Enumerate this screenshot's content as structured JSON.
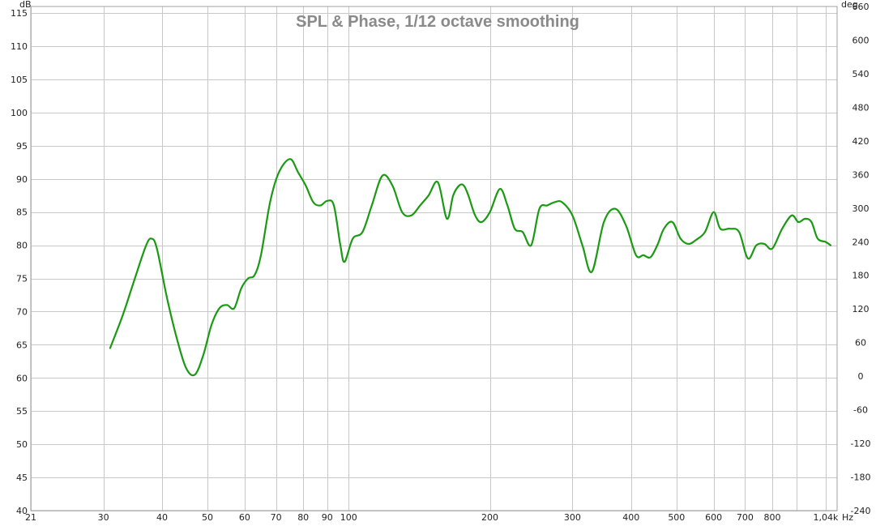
{
  "chart_data": {
    "type": "line",
    "title": "SPL & Phase, 1/12 octave smoothing",
    "xlabel": "Hz",
    "ylabel": "dB",
    "y2label": "deg",
    "x_scale": "log",
    "xlim": [
      21,
      1100
    ],
    "ylim": [
      40,
      116
    ],
    "y2lim": [
      -240,
      660
    ],
    "x_ticks": [
      {
        "value": 21,
        "label": "21"
      },
      {
        "value": 30,
        "label": "30"
      },
      {
        "value": 40,
        "label": "40"
      },
      {
        "value": 50,
        "label": "50"
      },
      {
        "value": 60,
        "label": "60"
      },
      {
        "value": 70,
        "label": "70"
      },
      {
        "value": 80,
        "label": "80"
      },
      {
        "value": 90,
        "label": "90"
      },
      {
        "value": 100,
        "label": "100"
      },
      {
        "value": 200,
        "label": "200"
      },
      {
        "value": 300,
        "label": "300"
      },
      {
        "value": 400,
        "label": "400"
      },
      {
        "value": 500,
        "label": "500"
      },
      {
        "value": 600,
        "label": "600"
      },
      {
        "value": 700,
        "label": "700"
      },
      {
        "value": 800,
        "label": "800"
      },
      {
        "value": 1040,
        "label": "1,04k"
      }
    ],
    "x_gridlines": [
      21,
      30,
      40,
      50,
      60,
      70,
      80,
      90,
      100,
      200,
      300,
      400,
      500,
      600,
      700,
      800,
      900,
      1040
    ],
    "y_ticks": [
      40,
      45,
      50,
      55,
      60,
      65,
      70,
      75,
      80,
      85,
      90,
      95,
      100,
      105,
      110,
      115
    ],
    "y2_ticks": [
      {
        "value": -240,
        "label": "-240"
      },
      {
        "value": -180,
        "label": "-180"
      },
      {
        "value": -120,
        "label": "-120"
      },
      {
        "value": -60,
        "label": "-60"
      },
      {
        "value": 0,
        "label": "0"
      },
      {
        "value": 60,
        "label": "60"
      },
      {
        "value": 120,
        "label": "120"
      },
      {
        "value": 180,
        "label": "180"
      },
      {
        "value": 240,
        "label": "240"
      },
      {
        "value": 300,
        "label": "300"
      },
      {
        "value": 360,
        "label": "360"
      },
      {
        "value": 420,
        "label": "420"
      },
      {
        "value": 480,
        "label": "480"
      },
      {
        "value": 540,
        "label": "540"
      },
      {
        "value": 600,
        "label": "600"
      },
      {
        "value": 660,
        "label": "660"
      }
    ],
    "grid": true,
    "series": [
      {
        "color": "#1a9a12",
        "x": [
          31,
          33,
          35,
          37,
          38,
          39,
          41,
          43,
          45,
          47,
          49,
          51,
          53,
          55,
          57,
          59,
          61,
          63,
          65,
          68,
          71,
          75,
          78,
          81,
          84,
          87,
          90,
          93,
          96,
          98,
          102,
          107,
          112,
          118,
          124,
          130,
          136,
          142,
          148,
          155,
          162,
          167,
          172,
          176,
          180,
          186,
          192,
          200,
          210,
          218,
          226,
          235,
          245,
          255,
          265,
          275,
          285,
          300,
          315,
          330,
          350,
          370,
          390,
          410,
          425,
          440,
          455,
          470,
          490,
          510,
          530,
          550,
          575,
          600,
          620,
          650,
          680,
          710,
          740,
          770,
          800,
          840,
          880,
          910,
          940,
          970,
          1000,
          1040,
          1065
        ],
        "y": [
          64.5,
          69.5,
          75,
          80,
          81,
          79.5,
          72,
          66,
          61.5,
          60.5,
          63.5,
          68,
          70.5,
          71,
          70.5,
          73.5,
          75,
          75.5,
          78.5,
          86.5,
          91,
          93,
          91,
          89,
          86.5,
          86,
          86.7,
          86,
          80,
          77.5,
          81,
          82,
          86,
          90.5,
          89,
          85,
          84.5,
          86,
          87.5,
          89.5,
          84,
          87.5,
          89,
          89,
          87.5,
          84.5,
          83.5,
          85,
          88.5,
          86,
          82.5,
          82,
          80,
          85.5,
          86,
          86.5,
          86.5,
          84.5,
          80,
          76,
          83.5,
          85.5,
          83,
          78.5,
          78.5,
          78.2,
          80,
          82.5,
          83.5,
          81,
          80.2,
          80.8,
          82,
          85,
          82.5,
          82.5,
          82,
          78,
          80,
          80.2,
          79.5,
          82.5,
          84.5,
          83.5,
          84,
          83.5,
          81,
          80.5,
          80
        ]
      }
    ]
  }
}
